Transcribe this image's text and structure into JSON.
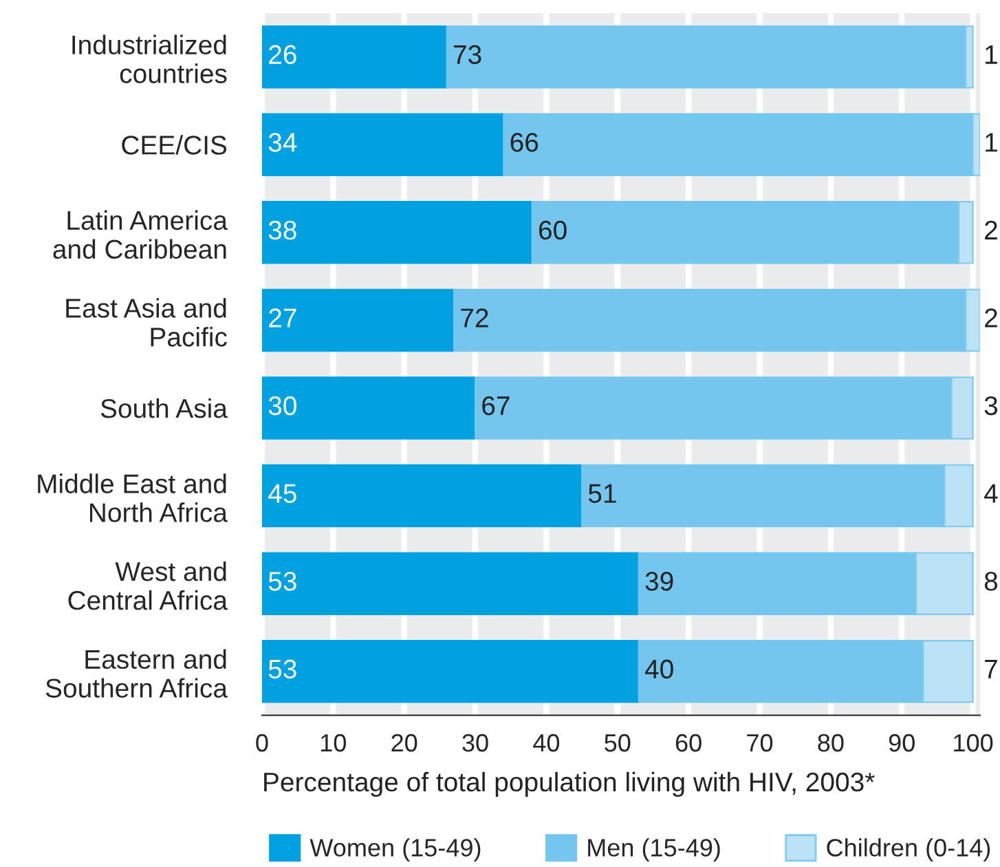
{
  "chart_data": {
    "type": "bar",
    "orientation": "horizontal",
    "stacked": true,
    "categories": [
      "Industrialized\ncountries",
      "CEE/CIS",
      "Latin America\nand Caribbean",
      "East Asia and\nPacific",
      "South Asia",
      "Middle East and\nNorth Africa",
      "West and\nCentral Africa",
      "Eastern and\nSouthern Africa"
    ],
    "series": [
      {
        "name": "Women (15-49)",
        "color": "#00a1e0",
        "values": [
          26,
          34,
          38,
          27,
          30,
          45,
          53,
          53
        ]
      },
      {
        "name": "Men (15-49)",
        "color": "#74c6ee",
        "values": [
          73,
          66,
          60,
          72,
          67,
          51,
          39,
          40
        ]
      },
      {
        "name": "Children (0-14)",
        "color": "#bde2f5",
        "values": [
          1,
          1,
          2,
          2,
          3,
          4,
          8,
          7
        ]
      }
    ],
    "xlabel": "Percentage of total population living with HIV, 2003*",
    "xlim": [
      0,
      101
    ],
    "xticks": [
      0,
      10,
      20,
      30,
      40,
      50,
      60,
      70,
      80,
      90,
      100
    ],
    "grid": "x",
    "legend": "bottom",
    "data_labels": true
  }
}
